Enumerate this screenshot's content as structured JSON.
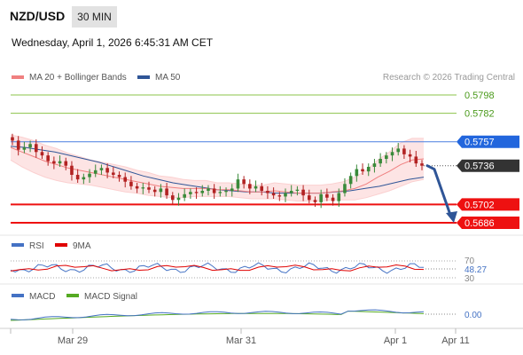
{
  "header": {
    "pair": "NZD/USD",
    "timeframe": "30 MIN",
    "datetime": "Wednesday, April 1, 2026 6:45:31 AM CET"
  },
  "legend": {
    "ma20_label": "MA 20 + Bollinger Bands",
    "ma50_label": "MA 50",
    "copyright": "Research © 2026 Trading Central",
    "colors": {
      "ma20": "#f08080",
      "ma50": "#2f5597",
      "band": "#fde4e4"
    }
  },
  "rsi_panel": {
    "label": "RSI",
    "ma_label": "9MA",
    "level_70": "70",
    "level_30": "30",
    "value": "48.27",
    "colors": {
      "rsi": "#4472c4",
      "ma": "#e00000"
    }
  },
  "macd_panel": {
    "label": "MACD",
    "signal_label": "MACD Signal",
    "value": "0.00",
    "colors": {
      "macd": "#4472c4",
      "signal": "#55aa22"
    }
  },
  "chart_data": {
    "type": "candlestick",
    "x_ticks": [
      "Mar 29",
      "Mar 31",
      "Apr 1",
      "Apr 11"
    ],
    "ylim": [
      0.568,
      0.5806
    ],
    "levels": [
      {
        "value": 0.5798,
        "label": "0.5798",
        "kind": "resistance-target",
        "color": "#8bc34a"
      },
      {
        "value": 0.5782,
        "label": "0.5782",
        "kind": "resistance-target",
        "color": "#8bc34a"
      },
      {
        "value": 0.5757,
        "label": "0.5757",
        "kind": "pivot",
        "color": "#2266dd"
      },
      {
        "value": 0.5736,
        "label": "0.5736",
        "kind": "last-price",
        "color": "#333333"
      },
      {
        "value": 0.5702,
        "label": "0.5702",
        "kind": "support-target",
        "color": "#ee1111"
      },
      {
        "value": 0.5686,
        "label": "0.5686",
        "kind": "support-target",
        "color": "#ee1111"
      }
    ],
    "close_series": [
      0.5758,
      0.575,
      0.5752,
      0.5755,
      0.5748,
      0.5745,
      0.574,
      0.5738,
      0.574,
      0.5736,
      0.5728,
      0.5724,
      0.5726,
      0.5729,
      0.5732,
      0.5734,
      0.573,
      0.5728,
      0.5726,
      0.5722,
      0.5718,
      0.5716,
      0.5717,
      0.5715,
      0.5713,
      0.5716,
      0.571,
      0.5706,
      0.5708,
      0.5711,
      0.5713,
      0.5712,
      0.5714,
      0.5716,
      0.5712,
      0.5713,
      0.5714,
      0.5716,
      0.5724,
      0.572,
      0.5716,
      0.5718,
      0.5714,
      0.5712,
      0.571,
      0.5709,
      0.5712,
      0.5714,
      0.5715,
      0.571,
      0.5706,
      0.5704,
      0.5711,
      0.5708,
      0.5705,
      0.5712,
      0.572,
      0.5727,
      0.5733,
      0.5731,
      0.5735,
      0.5738,
      0.5742,
      0.5745,
      0.5748,
      0.5751,
      0.5746,
      0.5744,
      0.5738,
      0.5736
    ],
    "ma20": [
      0.5752,
      0.5748,
      0.5744,
      0.574,
      0.5737,
      0.5734,
      0.5732,
      0.573,
      0.5728,
      0.5726,
      0.5724,
      0.5722,
      0.572,
      0.5718,
      0.5717,
      0.5716,
      0.5716,
      0.5716,
      0.5715,
      0.5715,
      0.5714,
      0.5713,
      0.5713,
      0.5714,
      0.5713,
      0.5712,
      0.5712,
      0.5712,
      0.5713,
      0.5714,
      0.5716,
      0.572,
      0.5726,
      0.5731,
      0.5737,
      0.5741,
      0.5742
    ],
    "ma50": [
      0.5753,
      0.5752,
      0.575,
      0.5748,
      0.5745,
      0.5742,
      0.5739,
      0.5735,
      0.5731,
      0.5727,
      0.5724,
      0.5721,
      0.5719,
      0.5717,
      0.5715,
      0.5714,
      0.5713,
      0.5713,
      0.5712,
      0.5712,
      0.5712,
      0.5712,
      0.5713,
      0.5714,
      0.5716,
      0.5718,
      0.5721,
      0.5724,
      0.5726
    ],
    "forecast_arrow": {
      "from": 0.5736,
      "to": 0.5686
    }
  }
}
